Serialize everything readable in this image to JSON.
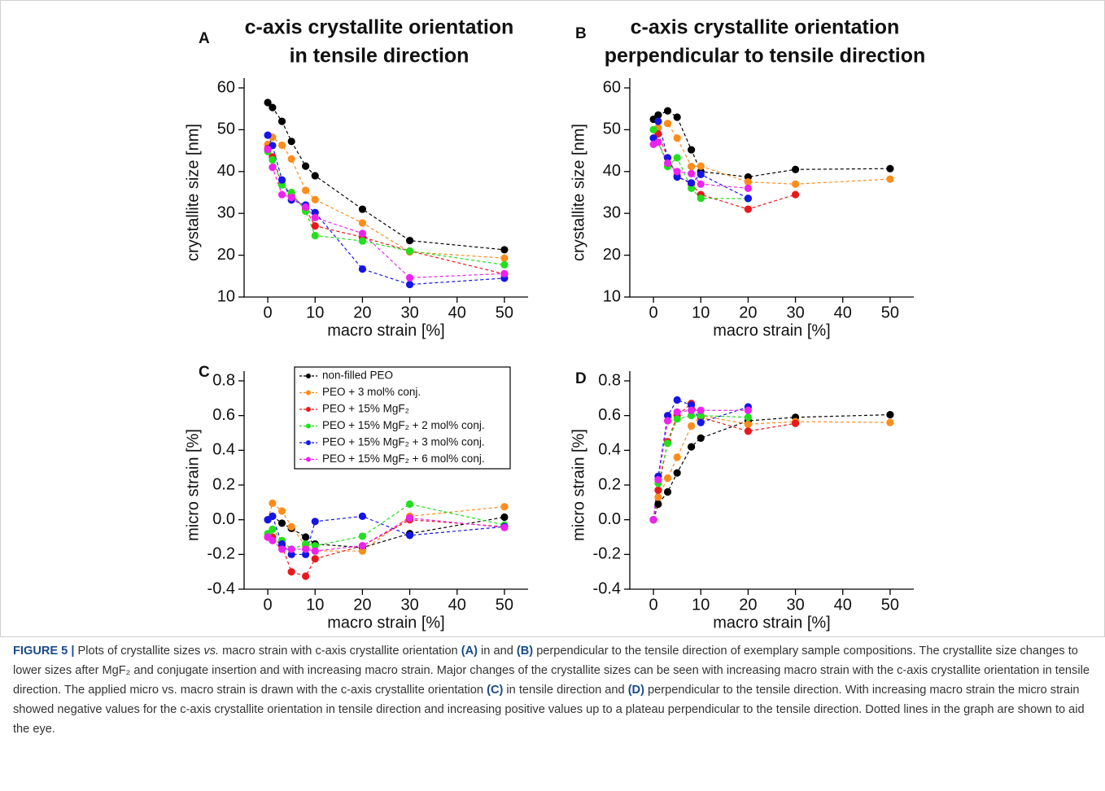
{
  "chart_data": [
    {
      "type": "line",
      "panel": "A",
      "title": [
        "c-axis crystallite orientation",
        "in tensile direction"
      ],
      "x_label": "macro strain [%]",
      "y_label": "crystallite size [nm]",
      "x": [
        0,
        1,
        3,
        5,
        8,
        10,
        20,
        30,
        50
      ],
      "xlim": [
        -5,
        55
      ],
      "xticks": [
        0,
        10,
        20,
        30,
        40,
        50
      ],
      "ylim": [
        10,
        60
      ],
      "yticks": [
        10,
        20,
        30,
        40,
        50,
        60
      ],
      "series": [
        {
          "color": "#000000",
          "values": [
            56.5,
            55.3,
            52,
            47.2,
            41.3,
            39,
            31,
            23.5,
            21.3
          ]
        },
        {
          "color": "#ff8c1a",
          "values": [
            46.5,
            48.2,
            46.3,
            43,
            35.5,
            33.3,
            27.7,
            20.8,
            19.3
          ]
        },
        {
          "color": "#e8191b",
          "values": [
            45.5,
            43.5,
            37,
            34.5,
            31,
            27,
            24.3,
            21,
            15.5
          ]
        },
        {
          "color": "#22e01e",
          "values": [
            44.8,
            42.8,
            36.8,
            35,
            30.5,
            24.7,
            23.4,
            21,
            17.7
          ]
        },
        {
          "color": "#1515e8",
          "values": [
            48.7,
            46.2,
            38,
            33.2,
            32,
            30.2,
            16.7,
            13,
            14.5
          ]
        },
        {
          "color": "#ee22ee",
          "values": [
            45.3,
            41,
            34.5,
            33.8,
            31.5,
            29,
            25.2,
            14.6,
            15.6
          ]
        }
      ]
    },
    {
      "type": "line",
      "panel": "B",
      "title": [
        "c-axis crystallite orientation",
        "perpendicular to tensile direction"
      ],
      "x_label": "macro strain [%]",
      "y_label": "crystallite size [nm]",
      "x": [
        0,
        1,
        3,
        5,
        8,
        10,
        20,
        30,
        50
      ],
      "xlim": [
        -5,
        55
      ],
      "xticks": [
        0,
        10,
        20,
        30,
        40,
        50
      ],
      "ylim": [
        10,
        60
      ],
      "yticks": [
        10,
        20,
        30,
        40,
        50,
        60
      ],
      "series": [
        {
          "color": "#000000",
          "values": [
            52.5,
            53.5,
            54.5,
            53,
            45.2,
            40,
            38.7,
            40.5,
            40.7
          ]
        },
        {
          "color": "#ff8c1a",
          "values": [
            50,
            50.5,
            51.5,
            48,
            41.2,
            41.3,
            37.5,
            37,
            38.2
          ]
        },
        {
          "color": "#e8191b",
          "values": [
            48,
            49,
            43.3,
            39,
            37,
            34.5,
            31,
            34.5,
            null
          ]
        },
        {
          "color": "#22e01e",
          "values": [
            50,
            47,
            41.2,
            43.3,
            36,
            33.6,
            33.5,
            null,
            null
          ]
        },
        {
          "color": "#1515e8",
          "values": [
            48,
            52,
            43.3,
            38.7,
            37.3,
            39.3,
            33.6,
            null,
            null
          ]
        },
        {
          "color": "#ee22ee",
          "values": [
            46.5,
            47,
            42,
            40,
            39.5,
            37,
            36,
            null,
            null
          ]
        }
      ]
    },
    {
      "type": "line",
      "panel": "C",
      "x_label": "macro strain [%]",
      "y_label": "micro strain [%]",
      "x": [
        0,
        1,
        3,
        5,
        8,
        10,
        20,
        30,
        50
      ],
      "xlim": [
        -5,
        55
      ],
      "xticks": [
        0,
        10,
        20,
        30,
        40,
        50
      ],
      "ylim": [
        -0.4,
        0.8
      ],
      "yticks": [
        -0.4,
        -0.2,
        {
          "value": 0,
          "label": "0.0"
        },
        0.2,
        0.4,
        0.6,
        0.8
      ],
      "legend": "upper left",
      "series": [
        {
          "name": "non-filled PEO",
          "color": "#000000",
          "values": [
            0,
            0.02,
            -0.02,
            -0.05,
            -0.1,
            -0.14,
            -0.16,
            -0.08,
            0.015
          ]
        },
        {
          "name": "PEO + 3 mol% conj.",
          "color": "#ff8c1a",
          "values": [
            0,
            0.095,
            0.05,
            -0.04,
            -0.15,
            -0.18,
            -0.18,
            0.02,
            0.075
          ]
        },
        {
          "name": "PEO + 15% MgF₂",
          "color": "#e8191b",
          "values": [
            -0.1,
            -0.1,
            -0.15,
            -0.3,
            -0.325,
            -0.225,
            -0.15,
            0,
            -0.04
          ]
        },
        {
          "name": "PEO + 15% MgF₂ + 2 mol% conj.",
          "color": "#22e01e",
          "values": [
            -0.08,
            -0.055,
            -0.12,
            -0.17,
            -0.14,
            -0.15,
            -0.095,
            0.09,
            -0.03
          ]
        },
        {
          "name": "PEO + 15% MgF₂ + 3 mol% conj.",
          "color": "#1515e8",
          "values": [
            0,
            0.02,
            -0.14,
            -0.2,
            -0.2,
            -0.01,
            0.02,
            -0.09,
            -0.04
          ]
        },
        {
          "name": "PEO + 15% MgF₂ + 6 mol% conj.",
          "color": "#ee22ee",
          "values": [
            -0.1,
            -0.12,
            -0.17,
            -0.17,
            -0.17,
            -0.18,
            -0.15,
            0.01,
            -0.045
          ]
        }
      ]
    },
    {
      "type": "line",
      "panel": "D",
      "x_label": "macro strain [%]",
      "y_label": "micro strain [%]",
      "x": [
        0,
        1,
        3,
        5,
        8,
        10,
        20,
        30,
        50
      ],
      "xlim": [
        -5,
        55
      ],
      "xticks": [
        0,
        10,
        20,
        30,
        40,
        50
      ],
      "ylim": [
        -0.4,
        0.8
      ],
      "yticks": [
        -0.4,
        -0.2,
        {
          "value": 0,
          "label": "0.0"
        },
        0.2,
        0.4,
        0.6,
        0.8
      ],
      "series": [
        {
          "color": "#000000",
          "values": [
            0,
            0.09,
            0.16,
            0.27,
            0.42,
            0.47,
            0.57,
            0.59,
            0.605
          ]
        },
        {
          "color": "#ff8c1a",
          "values": [
            0,
            0.13,
            0.24,
            0.36,
            0.54,
            0.6,
            0.55,
            0.565,
            0.56
          ]
        },
        {
          "color": "#e8191b",
          "values": [
            0,
            0.17,
            0.45,
            0.6,
            0.67,
            0.59,
            0.51,
            0.555,
            null
          ]
        },
        {
          "color": "#22e01e",
          "values": [
            0,
            0.21,
            0.44,
            0.58,
            0.6,
            0.6,
            0.59,
            null,
            null
          ]
        },
        {
          "color": "#1515e8",
          "values": [
            0,
            0.25,
            0.6,
            0.69,
            0.66,
            0.56,
            0.65,
            null,
            null
          ]
        },
        {
          "color": "#ee22ee",
          "values": [
            0,
            0.23,
            0.57,
            0.62,
            0.63,
            0.63,
            0.63,
            null,
            null
          ]
        }
      ]
    }
  ],
  "caption": [
    {
      "text": "FIGURE 5 |",
      "style": "bold"
    },
    {
      "text": " Plots of crystallite sizes "
    },
    {
      "text": "vs.",
      "style": "italic"
    },
    {
      "text": " macro strain with c-axis crystallite orientation "
    },
    {
      "text": "(A)",
      "style": "bold"
    },
    {
      "text": " in and "
    },
    {
      "text": "(B)",
      "style": "bold"
    },
    {
      "text": " perpendicular to the tensile direction of exemplary sample compositions. The crystallite size changes to lower sizes after MgF₂ and conjugate insertion and with increasing macro strain. Major changes of the crystallite sizes can be seen with increasing macro strain with the c-axis crystallite orientation in tensile direction. The applied micro vs. macro strain is drawn with the c-axis crystallite orientation "
    },
    {
      "text": "(C)",
      "style": "bold"
    },
    {
      "text": " in tensile direction and "
    },
    {
      "text": "(D)",
      "style": "bold"
    },
    {
      "text": " perpendicular to the tensile direction. With increasing macro strain the micro strain showed negative values for the c-axis crystallite orientation in tensile direction and increasing positive values up to a plateau perpendicular to the tensile direction. Dotted lines in the graph are shown to aid the eye."
    }
  ]
}
